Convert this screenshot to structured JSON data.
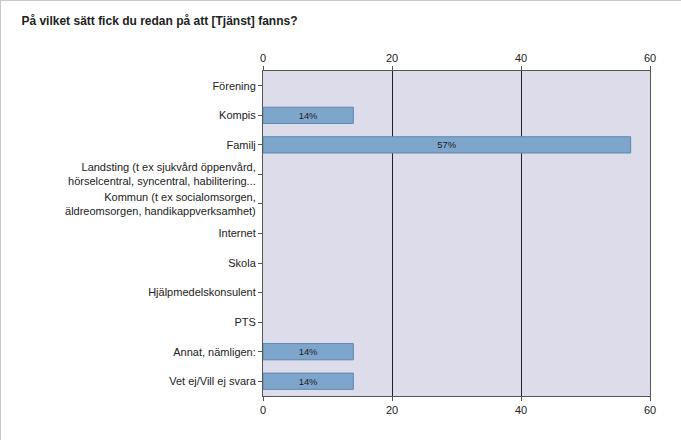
{
  "chart_data": {
    "type": "bar",
    "title": "På vilket sätt fick du redan på att [Tjänst] fanns?",
    "orientation": "horizontal",
    "categories": [
      "Förening",
      "Kompis",
      "Familj",
      "Landsting (t ex sjukvård öppenvård,\nhörselcentral, syncentral, habilitering...",
      "Kommun (t ex socialomsorgen,\näldreomsorgen, handikappverksamhet)",
      "Internet",
      "Skola",
      "Hjälpmedelskonsulent",
      "PTS",
      "Annat, nämligen:",
      "Vet ej/Vill ej svara"
    ],
    "values": [
      null,
      14,
      57,
      null,
      null,
      null,
      null,
      null,
      null,
      14,
      14
    ],
    "value_labels": [
      null,
      "14%",
      "57%",
      null,
      null,
      null,
      null,
      null,
      null,
      "14%",
      "14%"
    ],
    "data_labels": true,
    "color": "#7ea6cc",
    "xlim": [
      0,
      60
    ],
    "xticks": [
      0,
      20,
      40,
      60
    ],
    "grid": true
  }
}
